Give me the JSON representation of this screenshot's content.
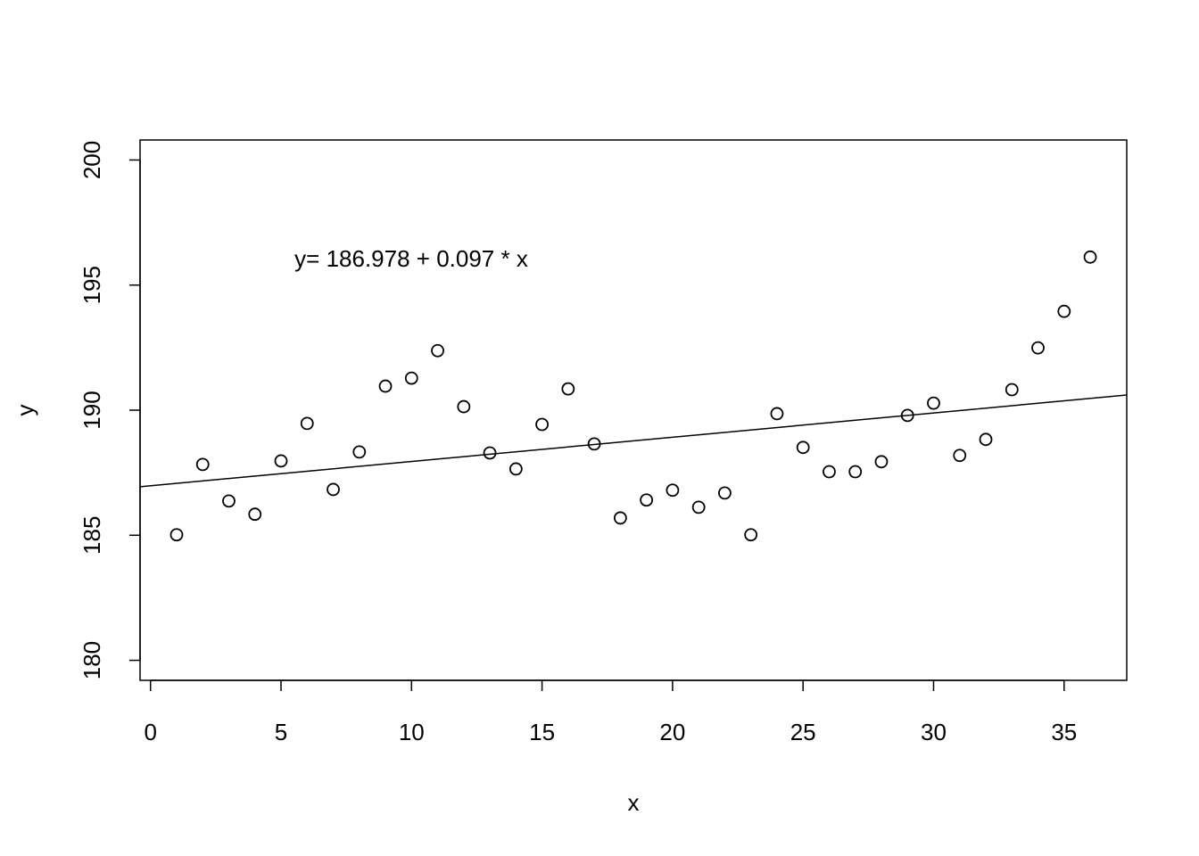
{
  "chart_data": {
    "type": "scatter",
    "x_label": "x",
    "y_label": "y",
    "annotation": "y= 186.978 + 0.097 * x",
    "line": {
      "intercept": 186.978,
      "slope": 0.097
    },
    "x": [
      1,
      2,
      3,
      4,
      5,
      6,
      7,
      8,
      9,
      10,
      11,
      12,
      13,
      14,
      15,
      16,
      17,
      18,
      19,
      20,
      21,
      22,
      23,
      24,
      25,
      26,
      27,
      28,
      29,
      30,
      31,
      32,
      33,
      34,
      35,
      36
    ],
    "y": [
      185.02,
      187.83,
      186.37,
      185.84,
      187.97,
      189.47,
      186.83,
      188.33,
      190.96,
      191.28,
      192.38,
      190.14,
      188.29,
      187.65,
      189.43,
      190.85,
      188.65,
      185.69,
      186.41,
      186.8,
      186.12,
      186.69,
      185.02,
      189.86,
      188.51,
      187.54,
      187.54,
      187.94,
      189.79,
      190.28,
      188.19,
      188.83,
      190.82,
      192.49,
      193.95,
      196.12
    ],
    "color": "#000000",
    "xlim": [
      -0.4,
      37.4
    ],
    "ylim": [
      179.2,
      200.8
    ],
    "xticks": [
      0,
      5,
      10,
      15,
      20,
      25,
      30,
      35
    ],
    "yticks": [
      180,
      185,
      190,
      195,
      200
    ]
  }
}
